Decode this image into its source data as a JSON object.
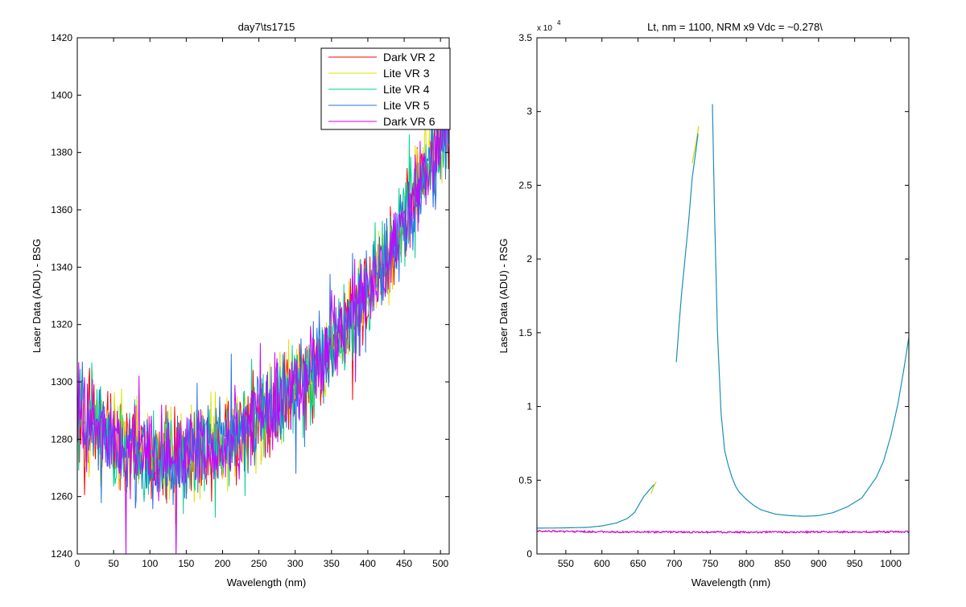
{
  "chart_data": [
    {
      "type": "line",
      "title": "day7\\ts1715",
      "xlabel": "Wavelength (nm)",
      "ylabel": "Laser Data (ADU) - BSG",
      "xlim": [
        0,
        512
      ],
      "ylim": [
        1240,
        1420
      ],
      "xticks": [
        0,
        50,
        100,
        150,
        200,
        250,
        300,
        350,
        400,
        450,
        500
      ],
      "yticks": [
        1240,
        1260,
        1280,
        1300,
        1320,
        1340,
        1360,
        1380,
        1400,
        1420
      ],
      "grid": false,
      "legend_position": "top-right",
      "baseline_approx": {
        "x": [
          0,
          50,
          100,
          150,
          200,
          250,
          300,
          350,
          400,
          450,
          500,
          512
        ],
        "y": [
          1290,
          1279,
          1273,
          1274,
          1279,
          1287,
          1298,
          1312,
          1332,
          1356,
          1385,
          1392
        ]
      },
      "noise_amplitude": 14,
      "series": [
        {
          "name": "Dark VR 2",
          "color": "#ff0000"
        },
        {
          "name": "Lite VR 3",
          "color": "#e0e000"
        },
        {
          "name": "Lite VR 4",
          "color": "#00d090"
        },
        {
          "name": "Lite VR 5",
          "color": "#2a6fe8"
        },
        {
          "name": "Dark VR 6",
          "color": "#cc00ff"
        }
      ]
    },
    {
      "type": "line",
      "title": "Lt, nm = 1100, NRM x9 Vdc = ~0.278\\",
      "xlabel": "Wavelength (nm)",
      "ylabel": "Laser Data (ADU) - RSG",
      "exponent_label": "x 10",
      "exponent_power": "4",
      "xlim": [
        510,
        1025
      ],
      "ylim": [
        0,
        35000
      ],
      "xticks": [
        550,
        600,
        650,
        700,
        750,
        800,
        850,
        900,
        950,
        1000
      ],
      "yticks": [
        0,
        5000,
        10000,
        15000,
        20000,
        25000,
        30000,
        35000
      ],
      "ytick_labels": [
        "0",
        "0.5",
        "1",
        "1.5",
        "2",
        "2.5",
        "3",
        "3.5"
      ],
      "grid": false,
      "series": [
        {
          "color": "#d4d400",
          "segments": [
            {
              "x": [
                668,
                672,
                675
              ],
              "y": [
                4100,
                4600,
                4900
              ]
            },
            {
              "x": [
                725,
                730,
                734
              ],
              "y": [
                26500,
                27800,
                29000
              ]
            }
          ]
        },
        {
          "color": "#1890b8",
          "segments": [
            {
              "x": [
                510,
                540,
                580,
                600,
                620,
                635,
                645,
                652,
                658,
                665,
                672
              ],
              "y": [
                1750,
                1760,
                1800,
                1900,
                2100,
                2400,
                2800,
                3400,
                3900,
                4300,
                4700
              ]
            },
            {
              "x": [
                703,
                706,
                710,
                715,
                720,
                725,
                730,
                733
              ],
              "y": [
                13000,
                15000,
                17500,
                20000,
                22500,
                25500,
                27300,
                28500
              ]
            },
            {
              "x": [
                753,
                754,
                756,
                760,
                765,
                770,
                775,
                780,
                785,
                790,
                800,
                810,
                820,
                840,
                860,
                880,
                900,
                920,
                940,
                960,
                980,
                990,
                1000,
                1010,
                1018,
                1025
              ],
              "y": [
                30500,
                28000,
                23000,
                15000,
                9500,
                7000,
                6000,
                5200,
                4600,
                4200,
                3700,
                3300,
                3000,
                2700,
                2600,
                2550,
                2600,
                2800,
                3200,
                3800,
                5200,
                6300,
                8000,
                10200,
                12500,
                14700
              ]
            }
          ]
        },
        {
          "color": "#cc00cc",
          "segments": [
            {
              "x": [
                510,
                600,
                700,
                800,
                900,
                1025
              ],
              "y": [
                1550,
                1500,
                1480,
                1470,
                1490,
                1500
              ]
            }
          ],
          "noise": 60
        }
      ]
    }
  ]
}
